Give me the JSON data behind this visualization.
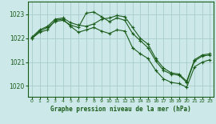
{
  "title": "Graphe pression niveau de la mer (hPa)",
  "bg_color": "#cce8e8",
  "grid_color": "#aacccc",
  "line_color": "#1a5c1a",
  "xlim": [
    -0.5,
    23.5
  ],
  "ylim": [
    1019.55,
    1023.55
  ],
  "yticks": [
    1020,
    1021,
    1022,
    1023
  ],
  "xticks": [
    0,
    1,
    2,
    3,
    4,
    5,
    6,
    7,
    8,
    9,
    10,
    11,
    12,
    13,
    14,
    15,
    16,
    17,
    18,
    19,
    20,
    21,
    22,
    23
  ],
  "series1_x": [
    0,
    1,
    2,
    3,
    4,
    5,
    6,
    7,
    8,
    9,
    10,
    11,
    12,
    13,
    14,
    15,
    16,
    17,
    18,
    19,
    20,
    21,
    22,
    23
  ],
  "series1_y": [
    1022.0,
    1022.3,
    1022.45,
    1022.7,
    1022.75,
    1022.55,
    1022.45,
    1023.05,
    1023.1,
    1022.9,
    1022.7,
    1022.85,
    1022.75,
    1022.2,
    1021.9,
    1021.6,
    1021.05,
    1020.65,
    1020.5,
    1020.45,
    1020.15,
    1021.05,
    1021.25,
    1021.3
  ],
  "series2_x": [
    0,
    1,
    2,
    3,
    4,
    5,
    6,
    7,
    8,
    9,
    10,
    11,
    12,
    13,
    14,
    15,
    16,
    17,
    18,
    19,
    20,
    21,
    22,
    23
  ],
  "series2_y": [
    1022.05,
    1022.35,
    1022.5,
    1022.8,
    1022.85,
    1022.65,
    1022.55,
    1022.5,
    1022.6,
    1022.8,
    1022.85,
    1022.95,
    1022.9,
    1022.45,
    1022.0,
    1021.75,
    1021.15,
    1020.75,
    1020.55,
    1020.5,
    1020.2,
    1021.1,
    1021.3,
    1021.35
  ],
  "series3_x": [
    0,
    1,
    2,
    3,
    4,
    5,
    6,
    7,
    8,
    9,
    10,
    11,
    12,
    13,
    14,
    15,
    16,
    17,
    18,
    19,
    20,
    21,
    22,
    23
  ],
  "series3_y": [
    1022.0,
    1022.25,
    1022.35,
    1022.75,
    1022.8,
    1022.5,
    1022.25,
    1022.35,
    1022.45,
    1022.3,
    1022.2,
    1022.35,
    1022.3,
    1021.6,
    1021.35,
    1021.15,
    1020.65,
    1020.3,
    1020.15,
    1020.1,
    1019.95,
    1020.8,
    1021.0,
    1021.1
  ]
}
